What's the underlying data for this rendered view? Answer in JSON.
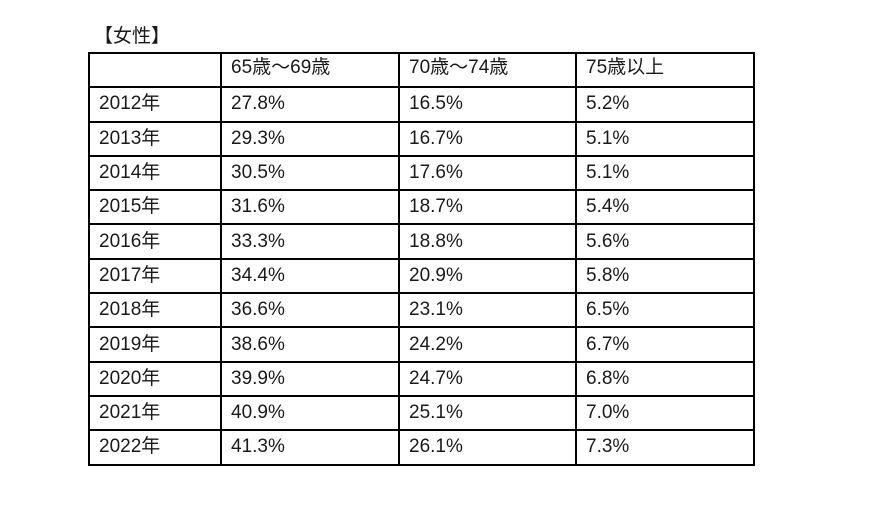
{
  "caption": "【女性】",
  "table": {
    "headers": [
      "",
      "65歳～69歳",
      "70歳～74歳",
      "75歳以上"
    ],
    "rows": [
      {
        "year": "2012年",
        "a": "27.8%",
        "b": "16.5%",
        "c": "5.2%"
      },
      {
        "year": "2013年",
        "a": "29.3%",
        "b": "16.7%",
        "c": "5.1%"
      },
      {
        "year": "2014年",
        "a": "30.5%",
        "b": "17.6%",
        "c": "5.1%"
      },
      {
        "year": "2015年",
        "a": "31.6%",
        "b": "18.7%",
        "c": "5.4%"
      },
      {
        "year": "2016年",
        "a": "33.3%",
        "b": "18.8%",
        "c": "5.6%"
      },
      {
        "year": "2017年",
        "a": "34.4%",
        "b": "20.9%",
        "c": "5.8%"
      },
      {
        "year": "2018年",
        "a": "36.6%",
        "b": "23.1%",
        "c": "6.5%"
      },
      {
        "year": "2019年",
        "a": "38.6%",
        "b": "24.2%",
        "c": "6.7%"
      },
      {
        "year": "2020年",
        "a": "39.9%",
        "b": "24.7%",
        "c": "6.8%"
      },
      {
        "year": "2021年",
        "a": "40.9%",
        "b": "25.1%",
        "c": "7.0%"
      },
      {
        "year": "2022年",
        "a": "41.3%",
        "b": "26.1%",
        "c": "7.3%"
      }
    ]
  }
}
